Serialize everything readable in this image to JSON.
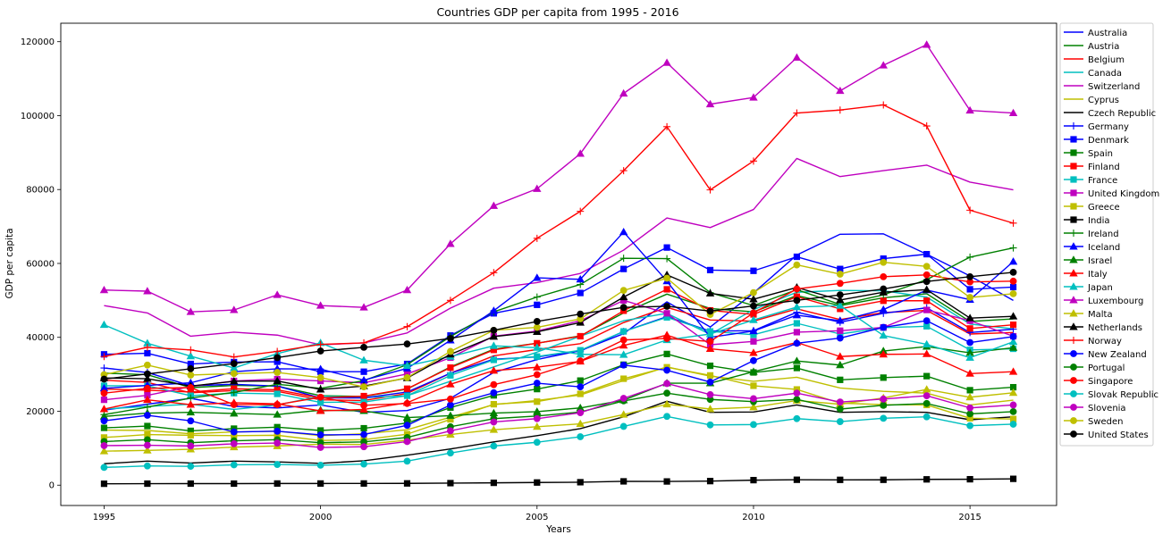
{
  "chart_data": {
    "type": "line",
    "title": "Countries GDP per capita from 1995 - 2016",
    "xlabel": "Years",
    "ylabel": "GDP per capita",
    "xlim": [
      1994.0,
      2017.0
    ],
    "ylim": [
      -5500,
      125000
    ],
    "xticks": [
      1995,
      2000,
      2005,
      2010,
      2015
    ],
    "yticks": [
      0,
      20000,
      40000,
      60000,
      80000,
      100000,
      120000
    ],
    "grid": false,
    "legend_position": "outside-right",
    "x": [
      1995,
      1996,
      1997,
      1998,
      1999,
      2000,
      2001,
      2002,
      2003,
      2004,
      2005,
      2006,
      2007,
      2008,
      2009,
      2010,
      2011,
      2012,
      2013,
      2014,
      2015,
      2016
    ],
    "series": [
      {
        "name": "Australia",
        "color": "#0000ff",
        "marker": "none",
        "values": [
          20300,
          21900,
          23500,
          21300,
          20900,
          21700,
          19700,
          20200,
          23500,
          30500,
          34000,
          36400,
          41000,
          49600,
          42800,
          52000,
          62300,
          67900,
          68000,
          62500,
          56600,
          50000
        ]
      },
      {
        "name": "Austria",
        "color": "#008000",
        "marker": "none",
        "values": [
          30300,
          29900,
          26400,
          27000,
          26800,
          24200,
          24000,
          26000,
          32000,
          36800,
          38400,
          40400,
          46600,
          51700,
          47800,
          46900,
          51300,
          48600,
          50700,
          51800,
          44300,
          45000
        ]
      },
      {
        "name": "Belgium",
        "color": "#ff0000",
        "marker": "none",
        "values": [
          28400,
          27800,
          25000,
          25600,
          25400,
          23100,
          22900,
          24800,
          30300,
          35000,
          36700,
          38300,
          44000,
          48100,
          44700,
          44400,
          47700,
          44800,
          46700,
          47300,
          40900,
          41300
        ]
      },
      {
        "name": "Canada",
        "color": "#00bfbf",
        "marker": "none",
        "values": [
          20600,
          21300,
          21900,
          20500,
          21700,
          24100,
          23700,
          24200,
          28100,
          32000,
          36000,
          40300,
          44500,
          46500,
          40800,
          47500,
          52200,
          52700,
          52600,
          50900,
          43600,
          42300
        ]
      },
      {
        "name": "Switzerland",
        "color": "#bf00bf",
        "marker": "none",
        "values": [
          48600,
          46600,
          40300,
          41400,
          40600,
          38000,
          38500,
          41200,
          47900,
          53300,
          54800,
          57300,
          63600,
          72300,
          69700,
          74600,
          88400,
          83500,
          85100,
          86600,
          82000,
          79900
        ]
      },
      {
        "name": "Cyprus",
        "color": "#bfbf00",
        "marker": "none",
        "values": [
          14900,
          14800,
          13900,
          14400,
          14600,
          13400,
          13900,
          15000,
          18400,
          21800,
          22900,
          24400,
          28300,
          32000,
          29500,
          28100,
          29200,
          26300,
          25400,
          24900,
          21700,
          23000
        ]
      },
      {
        "name": "Czech Republic",
        "color": "#000000",
        "marker": "none",
        "values": [
          5800,
          6500,
          6000,
          6500,
          6300,
          5900,
          6600,
          8100,
          9800,
          11700,
          13400,
          15300,
          18500,
          22700,
          19700,
          19800,
          21700,
          19700,
          19900,
          19700,
          17700,
          18500
        ]
      },
      {
        "name": "Germany",
        "color": "#0000ff",
        "marker": "+",
        "values": [
          31700,
          30500,
          26900,
          27300,
          26800,
          23600,
          23600,
          25200,
          30300,
          34100,
          34700,
          36300,
          41600,
          45600,
          41700,
          41800,
          46800,
          44100,
          46500,
          48000,
          41300,
          42200
        ]
      },
      {
        "name": "Denmark",
        "color": "#0000ff",
        "marker": "square",
        "values": [
          35400,
          35700,
          32800,
          33300,
          33400,
          30700,
          30700,
          32800,
          40500,
          46500,
          48800,
          52000,
          58500,
          64300,
          58200,
          58000,
          61800,
          58500,
          61300,
          62500,
          53000,
          53600
        ]
      },
      {
        "name": "Spain",
        "color": "#008000",
        "marker": "square",
        "values": [
          15500,
          16000,
          14700,
          15300,
          15700,
          14800,
          15400,
          16800,
          21000,
          24300,
          26000,
          28300,
          32600,
          35500,
          32300,
          30500,
          31700,
          28500,
          29100,
          29500,
          25700,
          26500
        ]
      },
      {
        "name": "Finland",
        "color": "#ff0000",
        "marker": "square",
        "values": [
          26000,
          25700,
          25200,
          26100,
          25800,
          23600,
          24100,
          26100,
          31800,
          36600,
          38400,
          40300,
          47200,
          53000,
          47300,
          46200,
          51000,
          47700,
          49900,
          49900,
          42400,
          43400
        ]
      },
      {
        "name": "France",
        "color": "#00bfbf",
        "marker": "square",
        "values": [
          26900,
          26900,
          24200,
          24900,
          24700,
          22400,
          22500,
          24200,
          29700,
          33900,
          34800,
          36500,
          41600,
          45400,
          41600,
          40700,
          43800,
          40900,
          42600,
          43000,
          36600,
          36900
        ]
      },
      {
        "name": "United Kingdom",
        "color": "#bf00bf",
        "marker": "square",
        "values": [
          23100,
          24300,
          26700,
          28200,
          28700,
          28200,
          27700,
          30100,
          34500,
          40300,
          41700,
          44500,
          50000,
          46500,
          38000,
          38900,
          41400,
          41800,
          42700,
          47400,
          44500,
          40300
        ]
      },
      {
        "name": "Greece",
        "color": "#bfbf00",
        "marker": "square",
        "values": [
          12900,
          13700,
          13500,
          13400,
          13500,
          12100,
          12300,
          13800,
          17800,
          21900,
          22600,
          24700,
          28800,
          31900,
          29700,
          26900,
          25900,
          22200,
          21800,
          21700,
          18100,
          17900
        ]
      },
      {
        "name": "India",
        "color": "#000000",
        "marker": "square",
        "values": [
          380,
          410,
          420,
          420,
          450,
          450,
          460,
          480,
          550,
          630,
          720,
          800,
          1030,
          1000,
          1100,
          1360,
          1460,
          1440,
          1450,
          1570,
          1600,
          1710
        ]
      },
      {
        "name": "Ireland",
        "color": "#008000",
        "marker": "+",
        "values": [
          19100,
          21100,
          23600,
          25100,
          27300,
          26200,
          28300,
          32600,
          40200,
          46900,
          50900,
          54300,
          61400,
          61300,
          52100,
          48600,
          52900,
          48900,
          51500,
          55600,
          61700,
          64200
        ]
      },
      {
        "name": "Iceland",
        "color": "#0000ff",
        "marker": "triangle",
        "values": [
          26200,
          27000,
          27700,
          30700,
          31500,
          31400,
          28400,
          31600,
          39200,
          47200,
          56100,
          55700,
          68500,
          55200,
          40000,
          41700,
          46000,
          44500,
          47500,
          52800,
          50200,
          60500
        ]
      },
      {
        "name": "Israel",
        "color": "#008000",
        "marker": "triangle",
        "values": [
          18600,
          19500,
          19700,
          19400,
          19100,
          20300,
          20100,
          18300,
          18800,
          19500,
          19900,
          20900,
          23000,
          27600,
          27600,
          30700,
          33600,
          32500,
          36300,
          37500,
          35800,
          37200
        ]
      },
      {
        "name": "Italy",
        "color": "#ff0000",
        "marker": "triangle",
        "values": [
          20600,
          23100,
          21800,
          22300,
          22000,
          20100,
          20500,
          22300,
          27300,
          31000,
          31900,
          33500,
          37800,
          40600,
          36900,
          35800,
          38600,
          34800,
          35400,
          35500,
          30200,
          30700
        ]
      },
      {
        "name": "Japan",
        "color": "#00bfbf",
        "marker": "triangle",
        "values": [
          43400,
          38400,
          34900,
          31700,
          35600,
          38500,
          33800,
          32300,
          34800,
          37700,
          37200,
          35400,
          35300,
          39300,
          40900,
          44700,
          48200,
          48600,
          40500,
          38100,
          34500,
          38800
        ]
      },
      {
        "name": "Luxembourg",
        "color": "#bf00bf",
        "marker": "triangle",
        "values": [
          52800,
          52500,
          46900,
          47400,
          51500,
          48600,
          48100,
          52800,
          65300,
          75600,
          80200,
          89700,
          106000,
          114300,
          103100,
          104900,
          115700,
          106700,
          113600,
          119200,
          101400,
          100700
        ]
      },
      {
        "name": "Malta",
        "color": "#bfbf00",
        "marker": "triangle",
        "values": [
          9200,
          9400,
          9700,
          10300,
          10600,
          11100,
          11000,
          12200,
          13700,
          15000,
          15800,
          16600,
          19100,
          21900,
          20600,
          21100,
          22900,
          21900,
          23600,
          25900,
          23800,
          25000
        ]
      },
      {
        "name": "Netherlands",
        "color": "#000000",
        "marker": "triangle",
        "values": [
          29000,
          28800,
          26800,
          28100,
          28200,
          25900,
          26800,
          29000,
          35400,
          40200,
          41500,
          44000,
          50900,
          56900,
          51900,
          50300,
          53500,
          50100,
          52200,
          52900,
          45200,
          45700
        ]
      },
      {
        "name": "Norway",
        "color": "#ff0000",
        "marker": "+",
        "values": [
          34800,
          37300,
          36600,
          34700,
          36200,
          38100,
          38500,
          42900,
          50000,
          57500,
          66800,
          74100,
          85100,
          97000,
          79900,
          87700,
          100700,
          101500,
          102900,
          97200,
          74400,
          70900
        ]
      },
      {
        "name": "New Zealand",
        "color": "#0000ff",
        "marker": "circle",
        "values": [
          17400,
          18900,
          17400,
          14400,
          14600,
          13600,
          13700,
          16200,
          21700,
          25000,
          27600,
          26600,
          32500,
          31100,
          27900,
          33700,
          38400,
          39800,
          42700,
          44500,
          38600,
          40200
        ]
      },
      {
        "name": "Portugal",
        "color": "#008000",
        "marker": "circle",
        "values": [
          11800,
          12300,
          11500,
          12000,
          12300,
          11500,
          11700,
          12900,
          15800,
          18000,
          18700,
          19800,
          22800,
          24900,
          23200,
          22600,
          23200,
          20600,
          21600,
          22100,
          19300,
          19900
        ]
      },
      {
        "name": "Singapore",
        "color": "#ff0000",
        "marker": "circle",
        "values": [
          24900,
          26200,
          26400,
          21800,
          21800,
          23800,
          21600,
          22100,
          23300,
          27200,
          29900,
          33600,
          39300,
          39700,
          38900,
          46600,
          53100,
          54600,
          56400,
          56900,
          55000,
          55200
        ]
      },
      {
        "name": "Slovak Republic",
        "color": "#00bfbf",
        "marker": "circle",
        "values": [
          4800,
          5200,
          5100,
          5500,
          5600,
          5400,
          5700,
          6500,
          8700,
          10600,
          11600,
          13100,
          15900,
          18600,
          16300,
          16400,
          18000,
          17200,
          18100,
          18500,
          16100,
          16500
        ]
      },
      {
        "name": "Slovenia",
        "color": "#bf00bf",
        "marker": "circle",
        "values": [
          10700,
          10800,
          10600,
          11200,
          11400,
          10200,
          10400,
          11800,
          14700,
          17100,
          18000,
          19600,
          23500,
          27500,
          24500,
          23400,
          24900,
          22500,
          23300,
          24200,
          20900,
          21700
        ]
      },
      {
        "name": "Sweden",
        "color": "#bfbf00",
        "marker": "circle",
        "values": [
          29900,
          32500,
          29800,
          30200,
          30500,
          29100,
          26600,
          29100,
          36200,
          41900,
          42700,
          45000,
          52700,
          56000,
          46200,
          52100,
          59600,
          57100,
          60300,
          59200,
          50800,
          51800
        ]
      },
      {
        "name": "United States",
        "color": "#000000",
        "marker": "circle",
        "values": [
          28700,
          30100,
          31500,
          32900,
          34500,
          36300,
          37300,
          38200,
          39700,
          41900,
          44300,
          46300,
          48100,
          48400,
          47100,
          48500,
          50000,
          51500,
          53100,
          55100,
          56400,
          57600
        ]
      }
    ]
  }
}
